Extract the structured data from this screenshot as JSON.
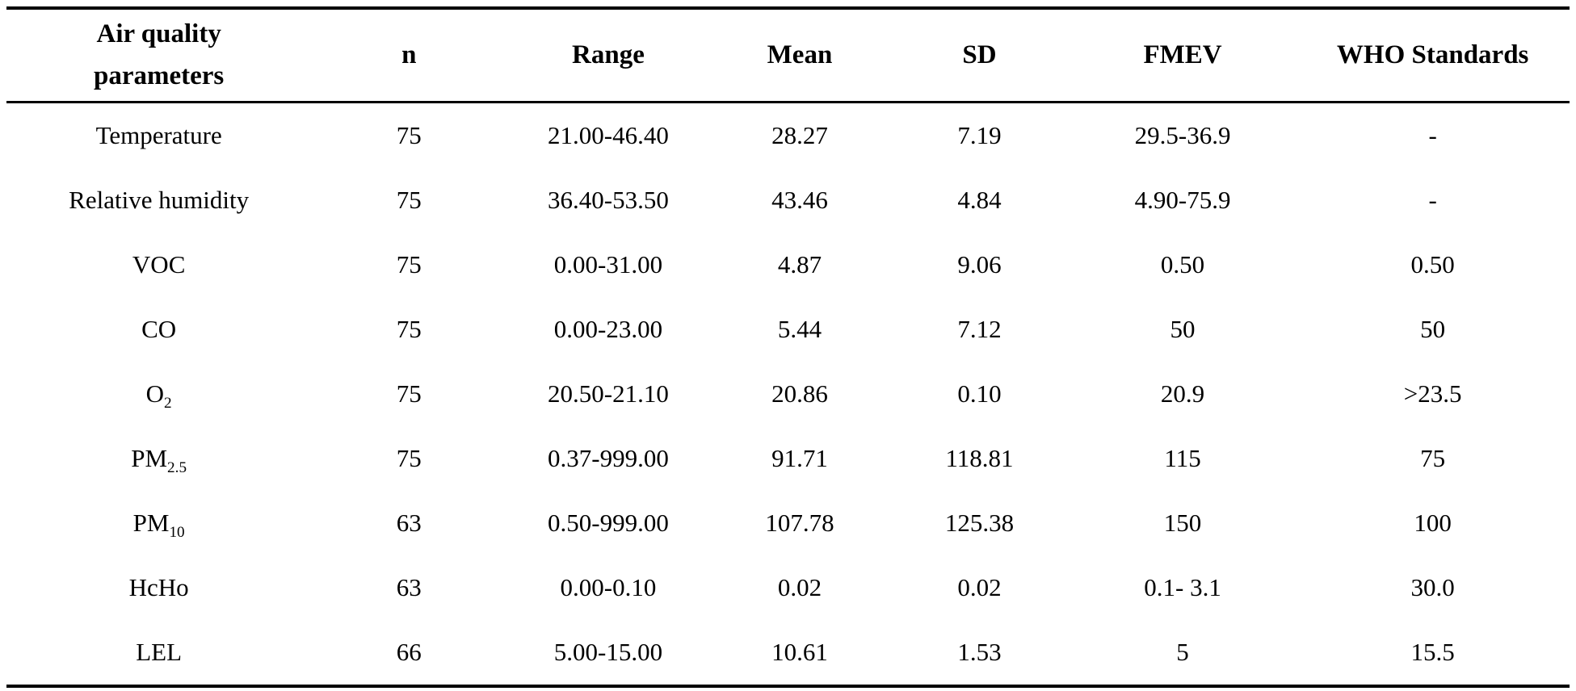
{
  "table": {
    "columns": [
      "Air quality parameters",
      "n",
      "Range",
      "Mean",
      "SD",
      "FMEV",
      "WHO Standards"
    ],
    "rows": [
      {
        "param": "Temperature",
        "sub": "",
        "n": "75",
        "range": "21.00-46.40",
        "mean": "28.27",
        "sd": "7.19",
        "fmev": "29.5-36.9",
        "who": "-"
      },
      {
        "param": "Relative humidity",
        "sub": "",
        "n": "75",
        "range": "36.40-53.50",
        "mean": "43.46",
        "sd": "4.84",
        "fmev": "4.90-75.9",
        "who": "-"
      },
      {
        "param": "VOC",
        "sub": "",
        "n": "75",
        "range": "0.00-31.00",
        "mean": "4.87",
        "sd": "9.06",
        "fmev": "0.50",
        "who": "0.50"
      },
      {
        "param": "CO",
        "sub": "",
        "n": "75",
        "range": "0.00-23.00",
        "mean": "5.44",
        "sd": "7.12",
        "fmev": "50",
        "who": "50"
      },
      {
        "param": "O",
        "sub": "2",
        "n": "75",
        "range": "20.50-21.10",
        "mean": "20.86",
        "sd": "0.10",
        "fmev": "20.9",
        "who": ">23.5"
      },
      {
        "param": "PM",
        "sub": "2.5",
        "n": "75",
        "range": "0.37-999.00",
        "mean": "91.71",
        "sd": "118.81",
        "fmev": "115",
        "who": "75"
      },
      {
        "param": "PM",
        "sub": "10",
        "n": "63",
        "range": "0.50-999.00",
        "mean": "107.78",
        "sd": "125.38",
        "fmev": "150",
        "who": "100"
      },
      {
        "param": "HcHo",
        "sub": "",
        "n": "63",
        "range": "0.00-0.10",
        "mean": "0.02",
        "sd": "0.02",
        "fmev": "0.1- 3.1",
        "who": "30.0"
      },
      {
        "param": "LEL",
        "sub": "",
        "n": "66",
        "range": "5.00-15.00",
        "mean": "10.61",
        "sd": "1.53",
        "fmev": "5",
        "who": "15.5"
      }
    ]
  }
}
